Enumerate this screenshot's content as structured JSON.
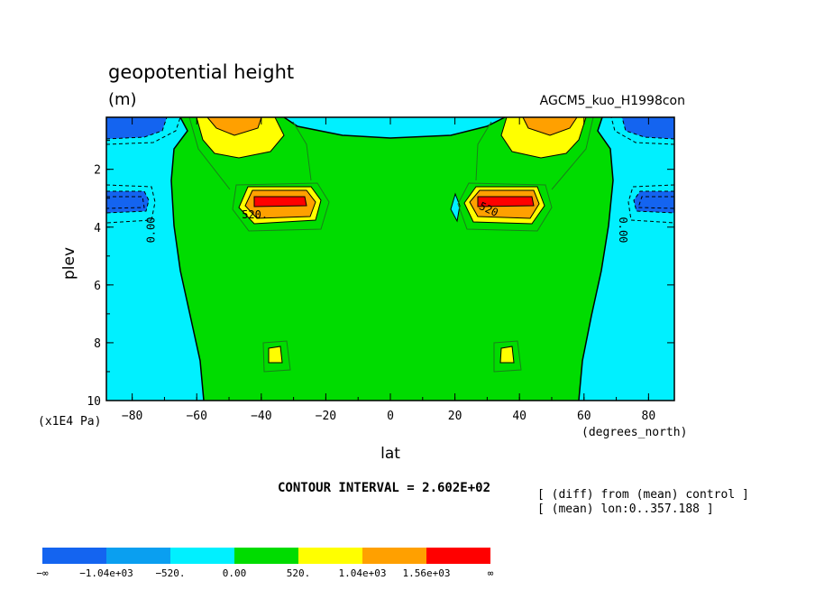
{
  "header": {
    "title": "geopotential height",
    "units": "(m)",
    "run_name": "AGCM5_kuo_H1998con"
  },
  "footer": {
    "contour_interval": "CONTOUR INTERVAL = 2.602E+02",
    "note_diff": "[ (diff) from (mean) control ]",
    "note_mean": "[ (mean) lon:0..357.188 ]"
  },
  "chart_data": {
    "type": "contour",
    "title": "geopotential height",
    "units": "(m)",
    "xlabel": "lat",
    "xlabel_units": "(degrees_north)",
    "ylabel": "plev",
    "ylabel_units": "(x1E4 Pa)",
    "xlim": [
      -88,
      88
    ],
    "ylim": [
      10,
      0.2
    ],
    "xticks": [
      -80,
      -60,
      -40,
      -20,
      0,
      20,
      40,
      60,
      80
    ],
    "xtick_labels": [
      "−80",
      "−60",
      "−40",
      "−20",
      "0",
      "20",
      "40",
      "60",
      "80"
    ],
    "yticks": [
      2,
      4,
      6,
      8,
      10
    ],
    "contour_interval": 260.2,
    "contour_labels": [
      {
        "text": "0.00",
        "lat": -73,
        "plev": 4.1,
        "rotate": -90
      },
      {
        "text": "0.00",
        "lat": 71,
        "plev": 4.1,
        "rotate": 90
      },
      {
        "text": "520.",
        "lat": -42,
        "plev": 3.7,
        "rotate": 0
      },
      {
        "text": "520",
        "lat": 30,
        "plev": 3.5,
        "rotate": 25
      }
    ],
    "colorbar": {
      "colors": [
        "#1464f0",
        "#0a9ff0",
        "#00f0ff",
        "#00dc00",
        "#ffff00",
        "#ffa000",
        "#ff0000"
      ],
      "labels": [
        "−∞",
        "−1.04e+03",
        "−520.",
        "0.00",
        "520.",
        "1.04e+03",
        "1.56e+03",
        "∞"
      ]
    },
    "colors": {
      "cyan": "#00f0ff",
      "green": "#00dc00",
      "blue": "#1464f0",
      "mid_blue": "#0a9ff0",
      "yellow": "#ffff00",
      "orange": "#ffa000",
      "red": "#ff0000"
    }
  }
}
